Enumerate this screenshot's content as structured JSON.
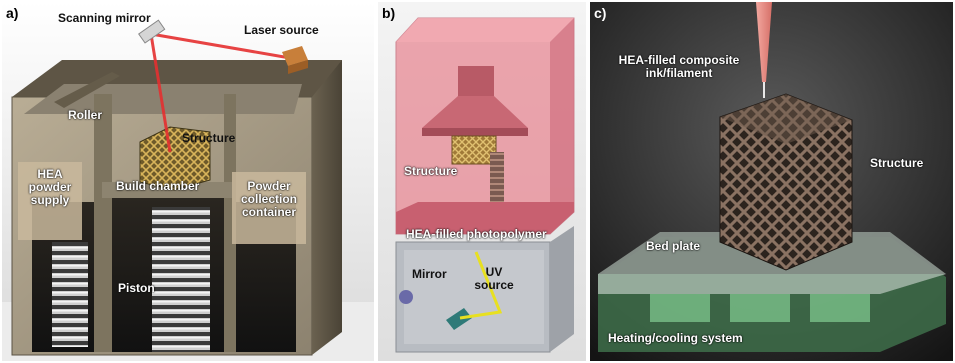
{
  "panels": {
    "a": {
      "label": "a)",
      "scanning_mirror": "Scanning mirror",
      "laser_source": "Laser source",
      "roller": "Roller",
      "structure": "Structure",
      "hea_powder_supply": [
        "HEA",
        "powder",
        "supply"
      ],
      "build_chamber": "Build chamber",
      "powder_collection": [
        "Powder",
        "collection",
        "container"
      ],
      "piston": "Piston"
    },
    "b": {
      "label": "b)",
      "structure": "Structure",
      "photopolymer": "HEA-filled photopolymer",
      "mirror": "Mirror",
      "uv_source": [
        "UV",
        "source"
      ]
    },
    "c": {
      "label": "c)",
      "ink_filament": [
        "HEA-filled composite",
        "ink/filament"
      ],
      "structure": "Structure",
      "bed_plate": "Bed plate",
      "heating_cooling": "Heating/cooling system"
    }
  },
  "colors": {
    "laser": "#e53030",
    "resin_tank": "#e88a95",
    "uv_beam": "#e8e020",
    "bed_glow": "#8fe0a0"
  }
}
